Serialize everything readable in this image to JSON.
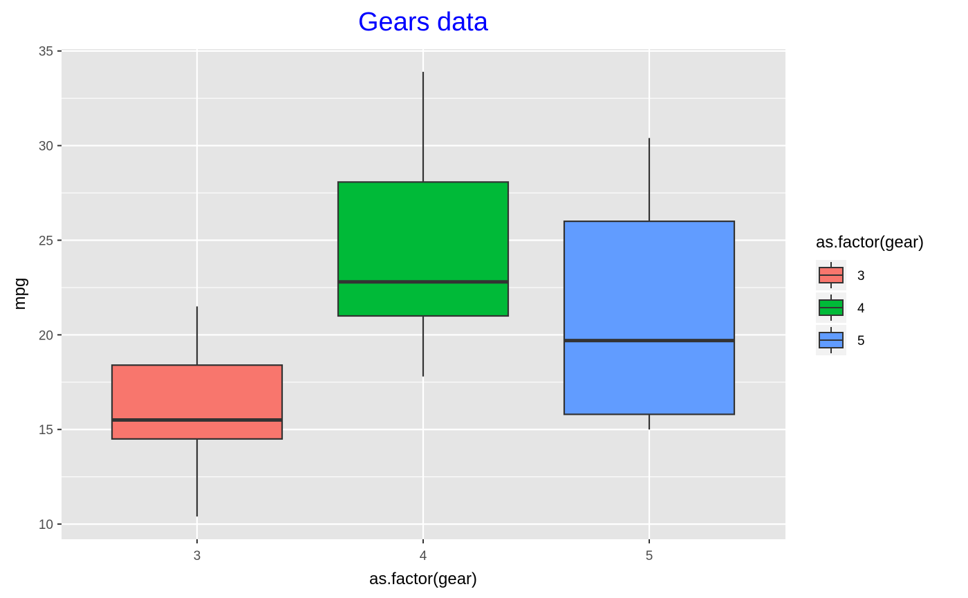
{
  "chart_data": {
    "type": "boxplot",
    "title": "Gears data",
    "xlabel": "as.factor(gear)",
    "ylabel": "mpg",
    "ylim": [
      9.2,
      35.1
    ],
    "yticks": [
      10,
      15,
      20,
      25,
      30,
      35
    ],
    "ytick_labels": [
      "10",
      "15",
      "20",
      "25",
      "30",
      "35"
    ],
    "grid": true,
    "categories": [
      "3",
      "4",
      "5"
    ],
    "boxes": [
      {
        "category": "3",
        "min": 10.4,
        "q1": 14.5,
        "median": 15.5,
        "q3": 18.4,
        "max": 21.5,
        "color": "#F8766D"
      },
      {
        "category": "4",
        "min": 17.8,
        "q1": 21.0,
        "median": 22.8,
        "q3": 28.075,
        "max": 33.9,
        "color": "#00BA38"
      },
      {
        "category": "5",
        "min": 15.0,
        "q1": 15.8,
        "median": 19.7,
        "q3": 26.0,
        "max": 30.4,
        "color": "#619CFF"
      }
    ],
    "legend": {
      "title": "as.factor(gear)",
      "position": "right",
      "items": [
        {
          "label": "3",
          "color": "#F8766D"
        },
        {
          "label": "4",
          "color": "#00BA38"
        },
        {
          "label": "5",
          "color": "#619CFF"
        }
      ]
    }
  },
  "colors": {
    "title": "#0000FF",
    "panel_background": "#E5E5E5",
    "grid": "#FFFFFF",
    "box_outline": "#333333"
  }
}
